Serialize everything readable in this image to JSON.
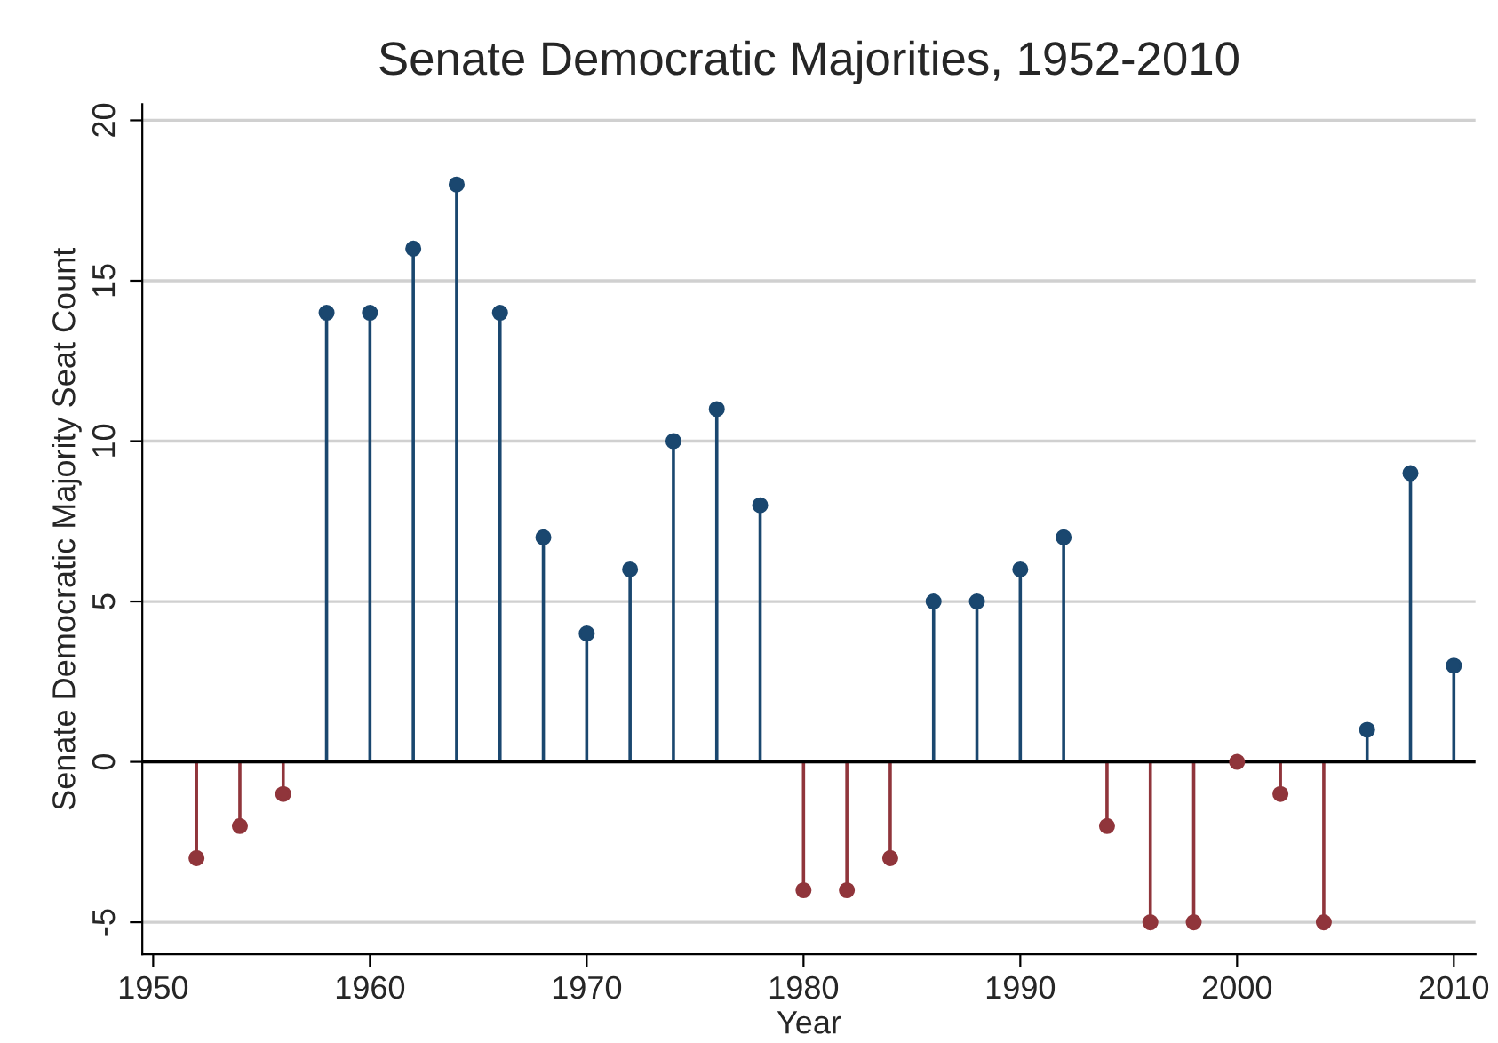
{
  "chart_data": {
    "type": "lollipop",
    "title": "Senate Democratic Majorities, 1952-2010",
    "xlabel": "Year",
    "ylabel": "Senate Democratic Majority Seat Count",
    "x": [
      1952,
      1954,
      1956,
      1958,
      1960,
      1962,
      1964,
      1966,
      1968,
      1970,
      1972,
      1974,
      1976,
      1978,
      1980,
      1982,
      1984,
      1986,
      1988,
      1990,
      1992,
      1994,
      1996,
      1998,
      2000,
      2002,
      2004,
      2006,
      2008,
      2010
    ],
    "values": [
      -3,
      -2,
      -1,
      14,
      14,
      16,
      18,
      14,
      7,
      4,
      6,
      10,
      11,
      8,
      -4,
      -4,
      -3,
      5,
      5,
      6,
      7,
      -2,
      -5,
      -5,
      0,
      -1,
      -5,
      1,
      9,
      3
    ],
    "colors": [
      "#90353b",
      "#90353b",
      "#90353b",
      "#1a476f",
      "#1a476f",
      "#1a476f",
      "#1a476f",
      "#1a476f",
      "#1a476f",
      "#1a476f",
      "#1a476f",
      "#1a476f",
      "#1a476f",
      "#1a476f",
      "#90353b",
      "#90353b",
      "#90353b",
      "#1a476f",
      "#1a476f",
      "#1a476f",
      "#1a476f",
      "#90353b",
      "#90353b",
      "#90353b",
      "#90353b",
      "#90353b",
      "#90353b",
      "#1a476f",
      "#1a476f",
      "#1a476f"
    ],
    "xlim": [
      1949.5,
      2011
    ],
    "xticks": [
      1950,
      1960,
      1970,
      1980,
      1990,
      2000,
      2010
    ],
    "ylim": [
      -6,
      20.5
    ],
    "yticks": [
      {
        "value": -5,
        "label": "-5"
      },
      0,
      5,
      10,
      15,
      20
    ],
    "grid": "y",
    "marker": "circle",
    "ref_lines": [
      {
        "axis": "y",
        "value": 0,
        "color": "#000000"
      }
    ]
  }
}
